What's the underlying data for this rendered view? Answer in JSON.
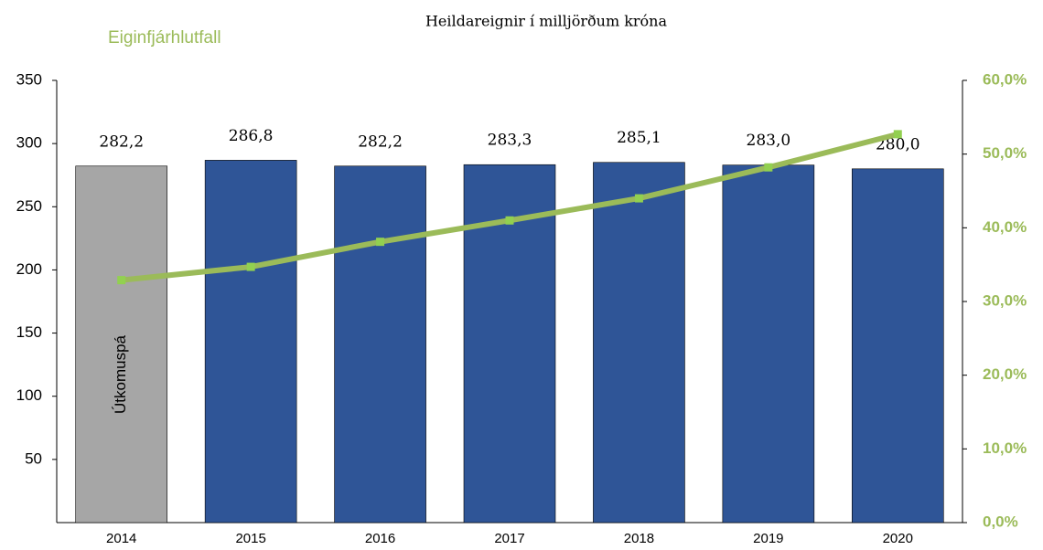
{
  "chart_data": {
    "type": "bar_line",
    "title": "Heildareignir í milljörðum króna",
    "categories": [
      "2014",
      "2015",
      "2016",
      "2017",
      "2018",
      "2019",
      "2020"
    ],
    "series": [
      {
        "type": "bar",
        "colors": [
          "#a6a6a6",
          "#2f5597",
          "#2f5597",
          "#2f5597",
          "#2f5597",
          "#2f5597",
          "#2f5597"
        ],
        "values": [
          282.2,
          286.8,
          282.2,
          283.3,
          285.1,
          283.0,
          280.0
        ],
        "value_labels": [
          "282,2",
          "286,8",
          "282,2",
          "283,3",
          "285,1",
          "283,0",
          "280,0"
        ]
      },
      {
        "type": "line",
        "name": "Eiginfjárhlutfall",
        "axis": "y2",
        "color": "#9bbb59",
        "marker_color": "#92d050",
        "values": [
          32.9,
          34.7,
          38.1,
          41.0,
          44.0,
          48.2,
          52.7
        ]
      }
    ],
    "annotations": [
      {
        "text": "Útkomuspá",
        "category": 0
      }
    ],
    "ylim": [
      0,
      350
    ],
    "yticks": [
      50,
      100,
      150,
      200,
      250,
      300,
      350
    ],
    "y2lim": [
      0,
      60
    ],
    "y2ticks": [
      {
        "value": 0,
        "label": "0,0%"
      },
      {
        "value": 10,
        "label": "10,0%"
      },
      {
        "value": 20,
        "label": "20,0%"
      },
      {
        "value": 30,
        "label": "30,0%"
      },
      {
        "value": 40,
        "label": "40,0%"
      },
      {
        "value": 50,
        "label": "50,0%"
      },
      {
        "value": 60,
        "label": "60,0%"
      }
    ]
  }
}
